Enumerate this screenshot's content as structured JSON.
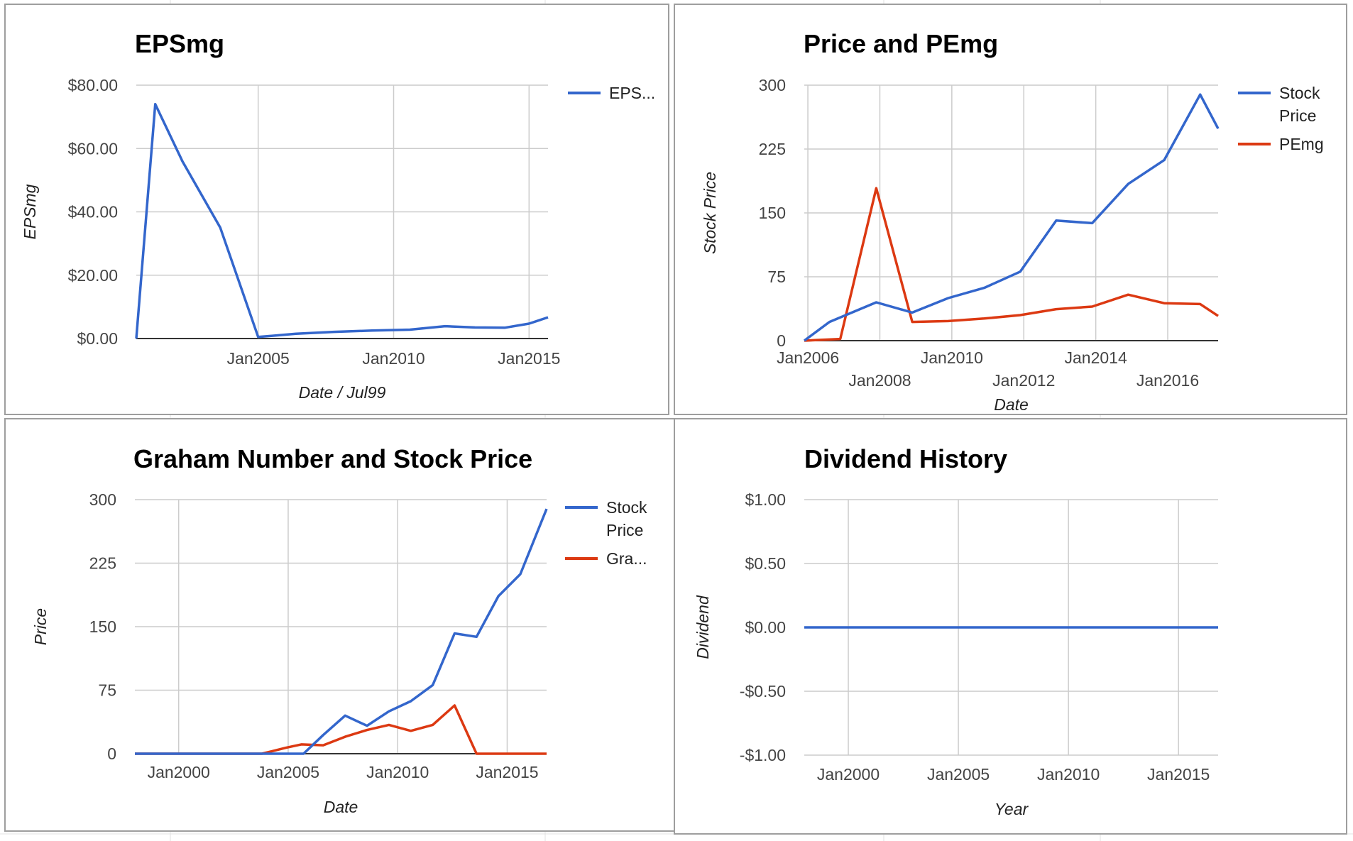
{
  "colors": {
    "blue": "#3366cc",
    "red": "#dc3912",
    "grid": "#cccccc",
    "border": "#9e9e9e",
    "axis": "#333333",
    "sheet_grid": "#e2e2e2"
  },
  "chart_data": [
    {
      "type": "line",
      "title": "EPSmg",
      "xlabel": "Date / Jul99",
      "ylabel": "EPSmg",
      "xlim": [
        2000.5,
        2015.7
      ],
      "ylim": [
        0,
        80
      ],
      "y_ticks": [
        0,
        20,
        40,
        60,
        80
      ],
      "y_tick_labels": [
        "$0.00",
        "$20.00",
        "$40.00",
        "$60.00",
        "$80.00"
      ],
      "x_ticks": [
        2005,
        2010,
        2015
      ],
      "x_tick_labels": [
        "Jan2005",
        "Jan2010",
        "Jan2015"
      ],
      "grid": true,
      "legend": "right",
      "series": [
        {
          "name": "EPS...",
          "color": "#3366cc",
          "x": [
            2000.5,
            2001.2,
            2002.2,
            2003.6,
            2005.0,
            2006.4,
            2007.8,
            2009.2,
            2010.6,
            2011.9,
            2013.0,
            2014.1,
            2015.0,
            2015.7
          ],
          "y": [
            0,
            74,
            56,
            35,
            0.5,
            1.5,
            2.1,
            2.5,
            2.8,
            3.9,
            3.5,
            3.4,
            4.7,
            6.7
          ]
        }
      ]
    },
    {
      "type": "line",
      "title": "Price and PEmg",
      "xlabel": "Date",
      "ylabel": "Stock Price",
      "xlim": [
        2005.9,
        2017.4
      ],
      "ylim": [
        0,
        300
      ],
      "y_ticks": [
        0,
        75,
        150,
        225,
        300
      ],
      "y_tick_labels": [
        "0",
        "75",
        "150",
        "225",
        "300"
      ],
      "x_ticks": [
        2006,
        2008,
        2010,
        2012,
        2014,
        2016
      ],
      "x_tick_labels": [
        "Jan2006",
        "Jan2008",
        "Jan2010",
        "Jan2012",
        "Jan2014",
        "Jan2016"
      ],
      "grid": true,
      "legend": "right",
      "series": [
        {
          "name": "Stock Price",
          "color": "#3366cc",
          "x": [
            2005.9,
            2006.6,
            2007.9,
            2008.9,
            2009.9,
            2010.9,
            2011.9,
            2012.9,
            2013.9,
            2014.9,
            2015.9,
            2016.9,
            2017.4
          ],
          "y": [
            0,
            22,
            45,
            33,
            50,
            62,
            81,
            141,
            138,
            184,
            212,
            289,
            249
          ]
        },
        {
          "name": "PEmg",
          "color": "#dc3912",
          "x": [
            2005.9,
            2006.9,
            2007.9,
            2008.9,
            2009.9,
            2010.9,
            2011.9,
            2012.9,
            2013.9,
            2014.9,
            2015.9,
            2016.9,
            2017.4
          ],
          "y": [
            0,
            2,
            179,
            22,
            23,
            26,
            30,
            37,
            40,
            54,
            44,
            43,
            29
          ]
        }
      ]
    },
    {
      "type": "line",
      "title": "Graham Number and Stock Price",
      "xlabel": "Date",
      "ylabel": "Price",
      "xlim": [
        1998,
        2016.8
      ],
      "ylim": [
        0,
        300
      ],
      "y_ticks": [
        0,
        75,
        150,
        225,
        300
      ],
      "y_tick_labels": [
        "0",
        "75",
        "150",
        "225",
        "300"
      ],
      "x_ticks": [
        2000,
        2005,
        2010,
        2015
      ],
      "x_tick_labels": [
        "Jan2000",
        "Jan2005",
        "Jan2010",
        "Jan2015"
      ],
      "grid": true,
      "legend": "right",
      "series": [
        {
          "name": "Stock Price",
          "color": "#3366cc",
          "x": [
            1998,
            2005.7,
            2006.6,
            2007.6,
            2008.6,
            2009.6,
            2010.6,
            2011.6,
            2012.6,
            2013.6,
            2014.6,
            2015.6,
            2016.8
          ],
          "y": [
            0,
            0,
            22,
            45,
            33,
            50,
            62,
            81,
            142,
            138,
            186,
            212,
            289
          ]
        },
        {
          "name": "Gra...",
          "color": "#dc3912",
          "x": [
            1998,
            2003.8,
            2004.9,
            2005.6,
            2006.6,
            2007.6,
            2008.6,
            2009.6,
            2010.6,
            2011.6,
            2012.6,
            2013.6,
            2016.8
          ],
          "y": [
            0,
            0,
            7,
            11,
            10,
            20,
            28,
            34,
            27,
            34,
            57,
            0,
            0
          ]
        }
      ]
    },
    {
      "type": "line",
      "title": "Dividend History",
      "xlabel": "Year",
      "ylabel": "Dividend",
      "xlim": [
        1998,
        2016.8
      ],
      "ylim": [
        -1,
        1
      ],
      "y_ticks": [
        -1,
        -0.5,
        0,
        0.5,
        1
      ],
      "y_tick_labels": [
        "-$1.00",
        "-$0.50",
        "$0.00",
        "$0.50",
        "$1.00"
      ],
      "x_ticks": [
        2000,
        2005,
        2010,
        2015
      ],
      "x_tick_labels": [
        "Jan2000",
        "Jan2005",
        "Jan2010",
        "Jan2015"
      ],
      "grid": true,
      "legend": "none",
      "series": [
        {
          "color": "#3366cc",
          "x": [
            1998,
            2016.8
          ],
          "y": [
            0,
            0
          ]
        }
      ]
    }
  ]
}
